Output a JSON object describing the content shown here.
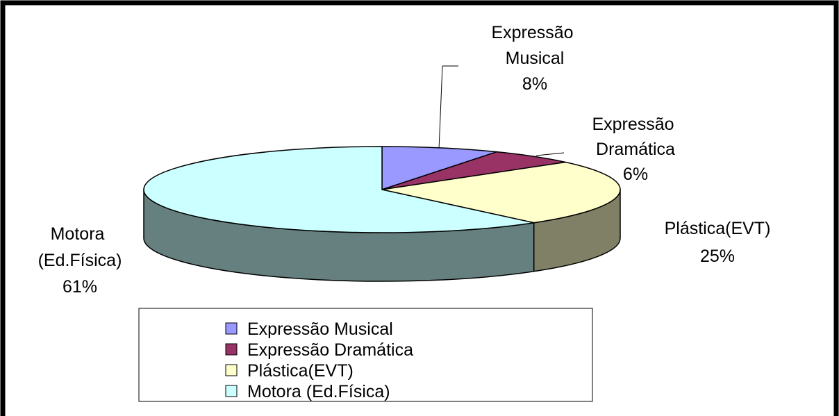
{
  "chart_data": {
    "type": "pie",
    "categories": [
      "Expressão Musical",
      "Expressão Dramática",
      "Plástica(EVT)",
      "Motora (Ed.Física)"
    ],
    "values": [
      8,
      6,
      25,
      61
    ],
    "value_labels": [
      "8%",
      "6%",
      "25%",
      "61%"
    ],
    "colors": [
      "#9999ff",
      "#993366",
      "#ffffcc",
      "#ccffff"
    ],
    "legend": "bottom"
  }
}
